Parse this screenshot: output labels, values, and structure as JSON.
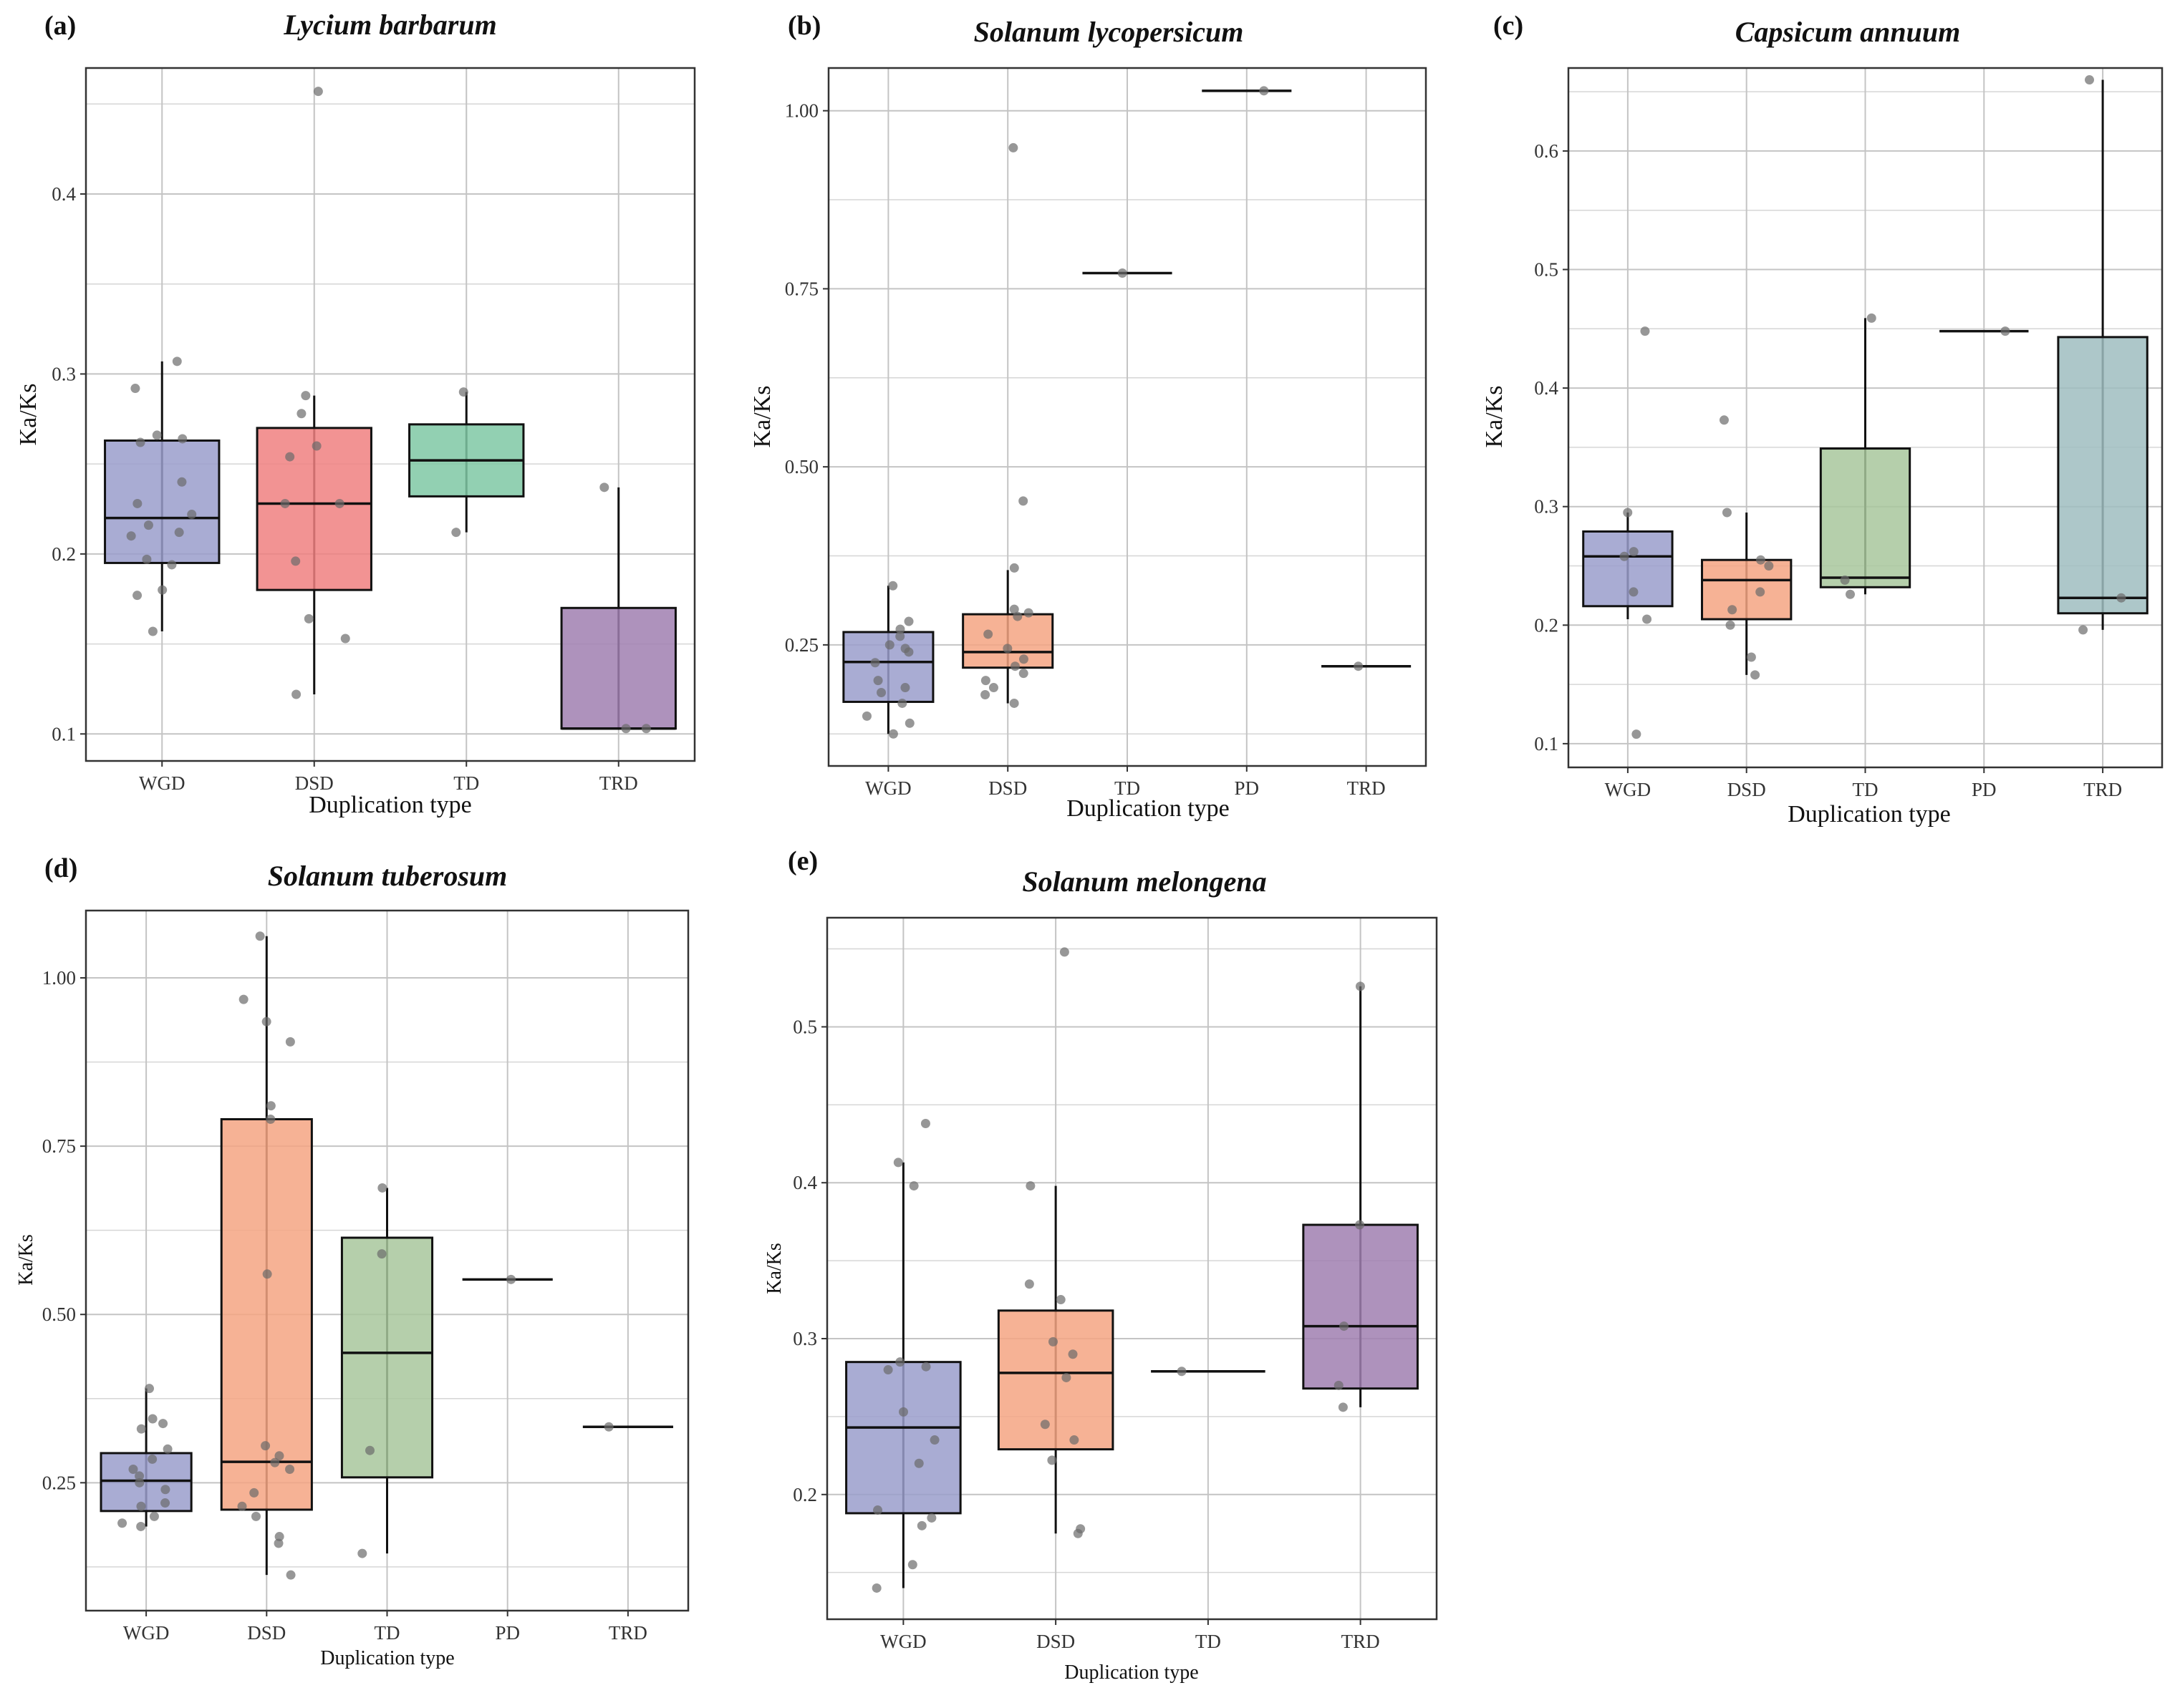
{
  "figure": {
    "description_note": "Five-panel box plot figure of Ka/Ks ratios by duplication type"
  },
  "chart_data": [
    {
      "type": "box",
      "panel_label": "(a)",
      "title": "Lycium barbarum",
      "xlabel": "Duplication type",
      "ylabel": "Ka/Ks",
      "ylim": [
        0.085,
        0.47
      ],
      "yticks": [
        0.1,
        0.2,
        0.3,
        0.4
      ],
      "ytick_labels": [
        "0.1",
        "0.2",
        "0.3",
        "0.4"
      ],
      "categories": [
        "WGD",
        "DSD",
        "TD",
        "TRD"
      ],
      "boxes": [
        {
          "category": "WGD",
          "color": "#9a9dcb",
          "q1": 0.195,
          "median": 0.22,
          "q3": 0.263,
          "whisker_low": 0.157,
          "whisker_high": 0.307,
          "points": [
            0.307,
            0.292,
            0.266,
            0.264,
            0.262,
            0.24,
            0.228,
            0.222,
            0.216,
            0.212,
            0.21,
            0.197,
            0.194,
            0.18,
            0.177,
            0.157
          ]
        },
        {
          "category": "DSD",
          "color": "#f08080",
          "q1": 0.18,
          "median": 0.228,
          "q3": 0.27,
          "whisker_low": 0.122,
          "whisker_high": 0.288,
          "points": [
            0.457,
            0.288,
            0.278,
            0.26,
            0.254,
            0.228,
            0.228,
            0.196,
            0.164,
            0.153,
            0.122
          ]
        },
        {
          "category": "TD",
          "color": "#7fc8a5",
          "q1": 0.232,
          "median": 0.252,
          "q3": 0.272,
          "whisker_low": 0.212,
          "whisker_high": 0.29,
          "points": [
            0.29,
            0.212
          ]
        },
        {
          "category": "TRD",
          "color": "#a07fb0",
          "q1": 0.103,
          "median": 0.103,
          "q3": 0.17,
          "whisker_low": 0.103,
          "whisker_high": 0.237,
          "points": [
            0.237,
            0.103,
            0.103
          ]
        }
      ]
    },
    {
      "type": "box",
      "panel_label": "(b)",
      "title": "Solanum lycopersicum",
      "xlabel": "Duplication type",
      "ylabel": "Ka/Ks",
      "ylim": [
        0.08,
        1.06
      ],
      "yticks": [
        0.25,
        0.5,
        0.75,
        1.0
      ],
      "ytick_labels": [
        "0.25",
        "0.50",
        "0.75",
        "1.00"
      ],
      "categories": [
        "WGD",
        "DSD",
        "TD",
        "PD",
        "TRD"
      ],
      "boxes": [
        {
          "category": "WGD",
          "color": "#9a9dcb",
          "q1": 0.17,
          "median": 0.226,
          "q3": 0.268,
          "whisker_low": 0.125,
          "whisker_high": 0.333,
          "points": [
            0.333,
            0.283,
            0.272,
            0.262,
            0.25,
            0.245,
            0.24,
            0.225,
            0.2,
            0.19,
            0.183,
            0.168,
            0.15,
            0.14,
            0.125
          ]
        },
        {
          "category": "DSD",
          "color": "#f4a582",
          "q1": 0.218,
          "median": 0.24,
          "q3": 0.293,
          "whisker_low": 0.168,
          "whisker_high": 0.355,
          "points": [
            0.948,
            0.452,
            0.358,
            0.3,
            0.295,
            0.29,
            0.265,
            0.245,
            0.23,
            0.22,
            0.21,
            0.2,
            0.19,
            0.18,
            0.168
          ]
        },
        {
          "category": "TD",
          "color": "#7fc8a5",
          "q1": 0.772,
          "median": 0.772,
          "q3": 0.772,
          "whisker_low": 0.772,
          "whisker_high": 0.772,
          "points": [
            0.772
          ]
        },
        {
          "category": "PD",
          "color": "#f4a582",
          "q1": 1.028,
          "median": 1.028,
          "q3": 1.028,
          "whisker_low": 1.028,
          "whisker_high": 1.028,
          "points": [
            1.028
          ]
        },
        {
          "category": "TRD",
          "color": "#a07fb0",
          "q1": 0.22,
          "median": 0.22,
          "q3": 0.22,
          "whisker_low": 0.22,
          "whisker_high": 0.22,
          "points": [
            0.22
          ]
        }
      ]
    },
    {
      "type": "box",
      "panel_label": "(c)",
      "title": "Capsicum annuum",
      "xlabel": "Duplication type",
      "ylabel": "Ka/Ks",
      "ylim": [
        0.08,
        0.67
      ],
      "yticks": [
        0.1,
        0.2,
        0.3,
        0.4,
        0.5,
        0.6
      ],
      "ytick_labels": [
        "0.1",
        "0.2",
        "0.3",
        "0.4",
        "0.5",
        "0.6"
      ],
      "categories": [
        "WGD",
        "DSD",
        "TD",
        "PD",
        "TRD"
      ],
      "boxes": [
        {
          "category": "WGD",
          "color": "#9a9dcb",
          "q1": 0.216,
          "median": 0.258,
          "q3": 0.279,
          "whisker_low": 0.205,
          "whisker_high": 0.295,
          "points": [
            0.448,
            0.295,
            0.262,
            0.258,
            0.228,
            0.205,
            0.108
          ]
        },
        {
          "category": "DSD",
          "color": "#f4a582",
          "q1": 0.205,
          "median": 0.238,
          "q3": 0.255,
          "whisker_low": 0.158,
          "whisker_high": 0.295,
          "points": [
            0.373,
            0.295,
            0.255,
            0.25,
            0.228,
            0.213,
            0.2,
            0.173,
            0.158
          ]
        },
        {
          "category": "TD",
          "color": "#a8c79c",
          "q1": 0.232,
          "median": 0.24,
          "q3": 0.349,
          "whisker_low": 0.226,
          "whisker_high": 0.459,
          "points": [
            0.459,
            0.238,
            0.226
          ]
        },
        {
          "category": "PD",
          "color": "#f4a582",
          "q1": 0.448,
          "median": 0.448,
          "q3": 0.448,
          "whisker_low": 0.448,
          "whisker_high": 0.448,
          "points": [
            0.448
          ]
        },
        {
          "category": "TRD",
          "color": "#9fbdbf",
          "q1": 0.21,
          "median": 0.223,
          "q3": 0.443,
          "whisker_low": 0.196,
          "whisker_high": 0.66,
          "points": [
            0.66,
            0.223,
            0.196
          ]
        }
      ]
    },
    {
      "type": "box",
      "panel_label": "(d)",
      "title": "Solanum tuberosum",
      "xlabel": "Duplication type",
      "ylabel": "Ka/Ks",
      "ylim": [
        0.06,
        1.1
      ],
      "yticks": [
        0.25,
        0.5,
        0.75,
        1.0
      ],
      "ytick_labels": [
        "0.25",
        "0.50",
        "0.75",
        "1.00"
      ],
      "categories": [
        "WGD",
        "DSD",
        "TD",
        "PD",
        "TRD"
      ],
      "boxes": [
        {
          "category": "WGD",
          "color": "#9a9dcb",
          "q1": 0.208,
          "median": 0.253,
          "q3": 0.294,
          "whisker_low": 0.185,
          "whisker_high": 0.39,
          "points": [
            0.39,
            0.345,
            0.338,
            0.33,
            0.3,
            0.285,
            0.27,
            0.26,
            0.25,
            0.24,
            0.22,
            0.215,
            0.2,
            0.19,
            0.185
          ]
        },
        {
          "category": "DSD",
          "color": "#f4a582",
          "q1": 0.21,
          "median": 0.281,
          "q3": 0.79,
          "whisker_low": 0.113,
          "whisker_high": 1.062,
          "points": [
            1.062,
            0.968,
            0.935,
            0.905,
            0.81,
            0.79,
            0.56,
            0.305,
            0.29,
            0.28,
            0.27,
            0.235,
            0.215,
            0.2,
            0.17,
            0.16,
            0.113
          ]
        },
        {
          "category": "TD",
          "color": "#a8c79c",
          "q1": 0.258,
          "median": 0.443,
          "q3": 0.614,
          "whisker_low": 0.145,
          "whisker_high": 0.688,
          "points": [
            0.688,
            0.59,
            0.298,
            0.145
          ]
        },
        {
          "category": "PD",
          "color": "#f4a582",
          "q1": 0.552,
          "median": 0.552,
          "q3": 0.552,
          "whisker_low": 0.552,
          "whisker_high": 0.552,
          "points": [
            0.552
          ]
        },
        {
          "category": "TRD",
          "color": "#a07fb0",
          "q1": 0.333,
          "median": 0.333,
          "q3": 0.333,
          "whisker_low": 0.333,
          "whisker_high": 0.333,
          "points": [
            0.333
          ]
        }
      ]
    },
    {
      "type": "box",
      "panel_label": "(e)",
      "title": "Solanum melongena",
      "xlabel": "Duplication type",
      "ylabel": "Ka/Ks",
      "ylim": [
        0.12,
        0.57
      ],
      "yticks": [
        0.2,
        0.3,
        0.4,
        0.5
      ],
      "ytick_labels": [
        "0.2",
        "0.3",
        "0.4",
        "0.5"
      ],
      "categories": [
        "WGD",
        "DSD",
        "TD",
        "TRD"
      ],
      "boxes": [
        {
          "category": "WGD",
          "color": "#9a9dcb",
          "q1": 0.188,
          "median": 0.243,
          "q3": 0.285,
          "whisker_low": 0.14,
          "whisker_high": 0.413,
          "points": [
            0.438,
            0.413,
            0.398,
            0.285,
            0.282,
            0.28,
            0.253,
            0.235,
            0.22,
            0.19,
            0.185,
            0.18,
            0.155,
            0.14
          ]
        },
        {
          "category": "DSD",
          "color": "#f4a582",
          "q1": 0.229,
          "median": 0.278,
          "q3": 0.318,
          "whisker_low": 0.175,
          "whisker_high": 0.398,
          "points": [
            0.548,
            0.398,
            0.335,
            0.325,
            0.298,
            0.29,
            0.275,
            0.245,
            0.235,
            0.222,
            0.178,
            0.175
          ]
        },
        {
          "category": "TD",
          "color": "#7fc8a5",
          "q1": 0.279,
          "median": 0.279,
          "q3": 0.279,
          "whisker_low": 0.279,
          "whisker_high": 0.279,
          "points": [
            0.279
          ]
        },
        {
          "category": "TRD",
          "color": "#a07fb0",
          "q1": 0.268,
          "median": 0.308,
          "q3": 0.373,
          "whisker_low": 0.256,
          "whisker_high": 0.526,
          "points": [
            0.526,
            0.373,
            0.308,
            0.27,
            0.256
          ]
        }
      ]
    }
  ]
}
